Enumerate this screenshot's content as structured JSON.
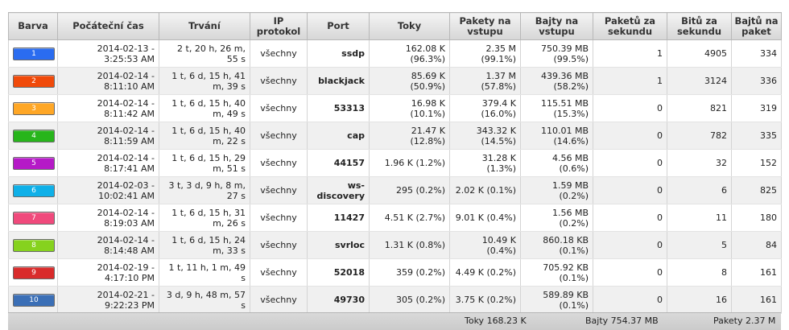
{
  "headers": {
    "color": "Barva",
    "start": "Počáteční čas",
    "duration": "Trvání",
    "protocol": "IP protokol",
    "port": "Port",
    "flows": "Toky",
    "packets_in": "Pakety na vstupu",
    "bytes_in": "Bajty na vstupu",
    "pps": "Paketů za sekundu",
    "bps": "Bitů za sekundu",
    "bpp": "Bajtů na paket"
  },
  "rows": [
    {
      "badge": "1",
      "color": "#2a6cf0",
      "start": "2014-02-13 - 3:25:53 AM",
      "duration": "2 t, 20 h, 26 m, 55 s",
      "protocol": "všechny",
      "port": "ssdp",
      "flows": "162.08 K (96.3%)",
      "packets_in": "2.35 M (99.1%)",
      "bytes_in": "750.39 MB (99.5%)",
      "pps": "1",
      "bps": "4905",
      "bpp": "334"
    },
    {
      "badge": "2",
      "color": "#f04a0a",
      "start": "2014-02-14 - 8:11:10 AM",
      "duration": "1 t, 6 d, 15 h, 41 m, 39 s",
      "protocol": "všechny",
      "port": "blackjack",
      "flows": "85.69 K (50.9%)",
      "packets_in": "1.37 M (57.8%)",
      "bytes_in": "439.36 MB (58.2%)",
      "pps": "1",
      "bps": "3124",
      "bpp": "336"
    },
    {
      "badge": "3",
      "color": "#ffa726",
      "start": "2014-02-14 - 8:11:42 AM",
      "duration": "1 t, 6 d, 15 h, 40 m, 49 s",
      "protocol": "všechny",
      "port": "53313",
      "flows": "16.98 K (10.1%)",
      "packets_in": "379.4 K (16.0%)",
      "bytes_in": "115.51 MB (15.3%)",
      "pps": "0",
      "bps": "821",
      "bpp": "319"
    },
    {
      "badge": "4",
      "color": "#27b51b",
      "start": "2014-02-14 - 8:11:59 AM",
      "duration": "1 t, 6 d, 15 h, 40 m, 22 s",
      "protocol": "všechny",
      "port": "cap",
      "flows": "21.47 K (12.8%)",
      "packets_in": "343.32 K (14.5%)",
      "bytes_in": "110.01 MB (14.6%)",
      "pps": "0",
      "bps": "782",
      "bpp": "335"
    },
    {
      "badge": "5",
      "color": "#b51ac7",
      "start": "2014-02-14 - 8:17:41 AM",
      "duration": "1 t, 6 d, 15 h, 29 m, 51 s",
      "protocol": "všechny",
      "port": "44157",
      "flows": "1.96 K (1.2%)",
      "packets_in": "31.28 K (1.3%)",
      "bytes_in": "4.56 MB (0.6%)",
      "pps": "0",
      "bps": "32",
      "bpp": "152"
    },
    {
      "badge": "6",
      "color": "#0fb0e8",
      "start": "2014-02-03 - 10:02:41 AM",
      "duration": "3 t, 3 d, 9 h, 8 m, 27 s",
      "protocol": "všechny",
      "port": "ws-discovery",
      "flows": "295 (0.2%)",
      "packets_in": "2.02 K (0.1%)",
      "bytes_in": "1.59 MB (0.2%)",
      "pps": "0",
      "bps": "6",
      "bpp": "825"
    },
    {
      "badge": "7",
      "color": "#f04a7c",
      "start": "2014-02-14 - 8:19:03 AM",
      "duration": "1 t, 6 d, 15 h, 31 m, 26 s",
      "protocol": "všechny",
      "port": "11427",
      "flows": "4.51 K (2.7%)",
      "packets_in": "9.01 K (0.4%)",
      "bytes_in": "1.56 MB (0.2%)",
      "pps": "0",
      "bps": "11",
      "bpp": "180"
    },
    {
      "badge": "8",
      "color": "#86d21e",
      "start": "2014-02-14 - 8:14:48 AM",
      "duration": "1 t, 6 d, 15 h, 24 m, 33 s",
      "protocol": "všechny",
      "port": "svrloc",
      "flows": "1.31 K (0.8%)",
      "packets_in": "10.49 K (0.4%)",
      "bytes_in": "860.18 KB (0.1%)",
      "pps": "0",
      "bps": "5",
      "bpp": "84"
    },
    {
      "badge": "9",
      "color": "#d92b2b",
      "start": "2014-02-19 - 4:17:10 PM",
      "duration": "1 t, 11 h, 1 m, 49 s",
      "protocol": "všechny",
      "port": "52018",
      "flows": "359 (0.2%)",
      "packets_in": "4.49 K (0.2%)",
      "bytes_in": "705.92 KB (0.1%)",
      "pps": "0",
      "bps": "8",
      "bpp": "161"
    },
    {
      "badge": "10",
      "color": "#3b6fb6",
      "start": "2014-02-21 - 9:22:23 PM",
      "duration": "3 d, 9 h, 48 m, 57 s",
      "protocol": "všechny",
      "port": "49730",
      "flows": "305 (0.2%)",
      "packets_in": "3.75 K (0.2%)",
      "bytes_in": "589.89 KB (0.1%)",
      "pps": "0",
      "bps": "16",
      "bpp": "161"
    }
  ],
  "footer": {
    "flows": "Toky 168.23 K",
    "bytes": "Bajty 754.37 MB",
    "packets": "Pakety 2.37 M"
  }
}
